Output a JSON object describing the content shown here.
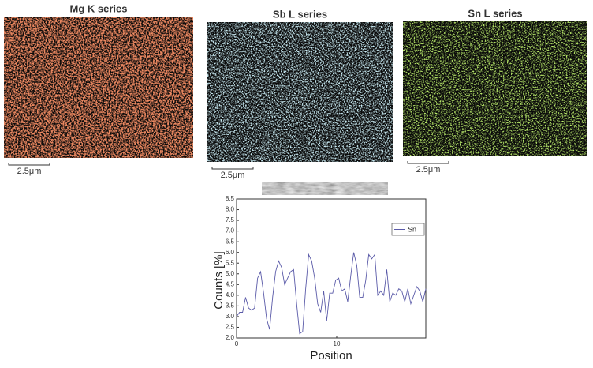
{
  "maps": [
    {
      "title": "Mg K series",
      "scale_label": "2.5μm"
    },
    {
      "title": "Sb L series",
      "scale_label": "2.5μm"
    },
    {
      "title": "Sn L series",
      "scale_label": "2.5μm"
    }
  ],
  "chart_data": {
    "type": "line",
    "x_label": "Position",
    "y_label": "Counts [%]",
    "x": [
      0,
      0.3,
      0.6,
      0.9,
      1.2,
      1.5,
      1.8,
      2.1,
      2.4,
      2.7,
      3.0,
      3.3,
      3.6,
      3.9,
      4.2,
      4.5,
      4.8,
      5.1,
      5.4,
      5.7,
      6.0,
      6.3,
      6.6,
      6.9,
      7.2,
      7.5,
      7.8,
      8.1,
      8.4,
      8.7,
      9.0,
      9.3,
      9.6,
      9.9,
      10.2,
      10.5,
      10.8,
      11.1,
      11.4,
      11.7,
      12.0,
      12.3,
      12.6,
      12.9,
      13.2,
      13.5,
      13.8,
      14.1,
      14.4,
      14.7,
      15.0,
      15.3,
      15.6,
      15.9,
      16.2,
      16.5,
      16.8,
      17.1,
      17.4,
      17.7,
      18.0,
      18.3,
      18.6,
      18.9
    ],
    "series": [
      {
        "name": "Sn",
        "color": "#5a5aa8",
        "values": [
          3.0,
          3.2,
          3.2,
          3.9,
          3.4,
          3.3,
          3.4,
          4.8,
          5.1,
          4.1,
          2.9,
          2.4,
          3.9,
          5.1,
          5.6,
          5.3,
          4.5,
          4.8,
          5.1,
          5.2,
          3.6,
          2.2,
          2.3,
          4.3,
          5.9,
          5.6,
          4.8,
          3.6,
          3.2,
          4.2,
          2.8,
          4.1,
          4.1,
          4.7,
          4.8,
          4.2,
          4.3,
          3.7,
          4.9,
          6.0,
          5.4,
          3.9,
          3.9,
          4.7,
          5.9,
          5.7,
          5.9,
          4.0,
          4.2,
          4.0,
          5.2,
          3.7,
          4.1,
          4.0,
          4.3,
          4.2,
          3.7,
          4.3,
          3.6,
          4.0,
          4.4,
          4.2,
          3.7,
          4.3
        ]
      }
    ],
    "xlim": [
      0,
      18.9
    ],
    "xticks": [
      0,
      10
    ],
    "ylim": [
      2.0,
      8.5
    ],
    "yticks": [
      {
        "value": 2.0,
        "label": "2.0"
      },
      {
        "value": 2.5,
        "label": "2.5"
      },
      {
        "value": 3.0,
        "label": "3.0"
      },
      {
        "value": 3.5,
        "label": "3.5"
      },
      {
        "value": 4.0,
        "label": "4.0"
      },
      {
        "value": 4.5,
        "label": "4.5"
      },
      {
        "value": 5.0,
        "label": "5.0"
      },
      {
        "value": 5.5,
        "label": "5.5"
      },
      {
        "value": 6.0,
        "label": "6.0"
      },
      {
        "value": 6.5,
        "label": "6.5"
      },
      {
        "value": 7.0,
        "label": "7.0"
      },
      {
        "value": 7.5,
        "label": "7.5"
      },
      {
        "value": 8.0,
        "label": "8.0"
      },
      {
        "value": 8.5,
        "label": "8.5"
      }
    ],
    "legend": "upper right"
  }
}
